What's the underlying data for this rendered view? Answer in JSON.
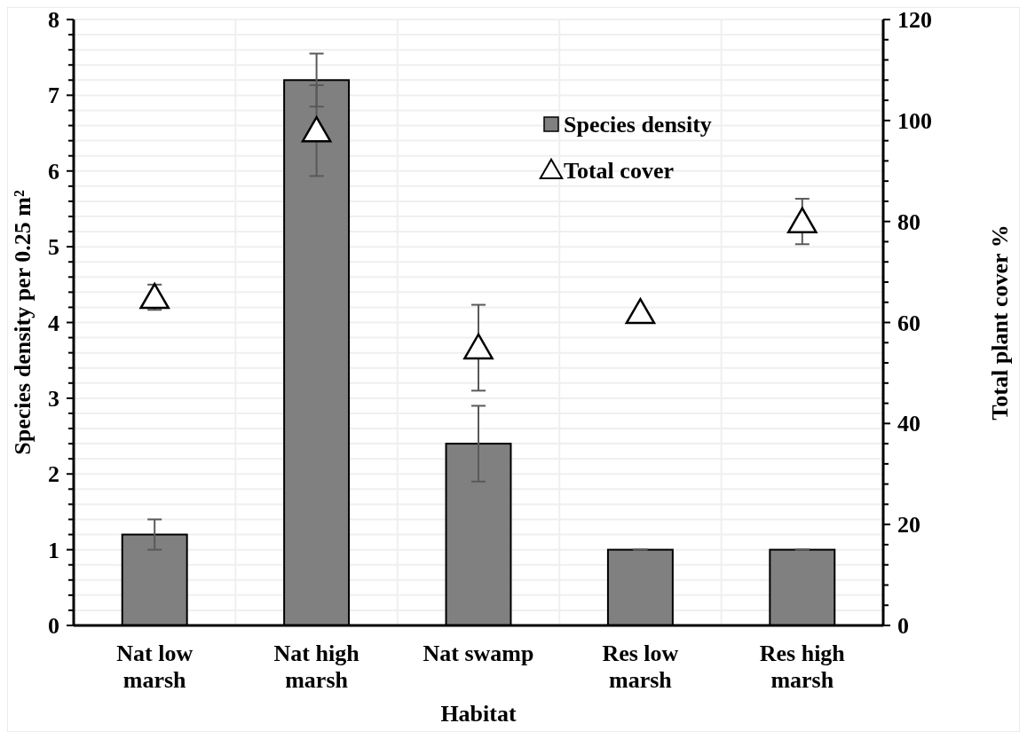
{
  "chart_data": {
    "type": "bar",
    "xlabel": "Habitat",
    "ylabel": "Species density per 0.25 m²",
    "y2label": "Total plant cover %",
    "categories": [
      "Nat low marsh",
      "Nat high marsh",
      "Nat swamp",
      "Res low marsh",
      "Res high marsh"
    ],
    "series": [
      {
        "name": "Species density",
        "color": "#808080",
        "values": [
          1.2,
          7.2,
          2.4,
          1.0,
          1.0
        ],
        "errors": [
          0.2,
          0.35,
          0.5,
          0,
          0
        ]
      },
      {
        "name": "Total cover",
        "type": "scatter",
        "axis": "y2",
        "color": "#000000",
        "marker": "triangle",
        "values": [
          65,
          98,
          55,
          62,
          80
        ],
        "errors": [
          2.5,
          9,
          8.5,
          0,
          4.5
        ]
      }
    ],
    "ylim": [
      0,
      8
    ],
    "yticks": [
      0,
      {
        "value": 0.2,
        "label": null
      },
      {
        "value": 0.4,
        "label": null
      },
      {
        "value": 0.6,
        "label": null
      },
      {
        "value": 0.8,
        "label": null
      },
      1,
      {
        "value": 1.2,
        "label": null
      },
      {
        "value": 1.4,
        "label": null
      },
      {
        "value": 1.6,
        "label": null
      },
      {
        "value": 1.8,
        "label": null
      },
      2,
      {
        "value": 2.2,
        "label": null
      },
      {
        "value": 2.4,
        "label": null
      },
      {
        "value": 2.6,
        "label": null
      },
      {
        "value": 2.8,
        "label": null
      },
      3,
      {
        "value": 3.2,
        "label": null
      },
      {
        "value": 3.4,
        "label": null
      },
      {
        "value": 3.6,
        "label": null
      },
      {
        "value": 3.8,
        "label": null
      },
      4,
      {
        "value": 4.2,
        "label": null
      },
      {
        "value": 4.4,
        "label": null
      },
      {
        "value": 4.6,
        "label": null
      },
      {
        "value": 4.8,
        "label": null
      },
      5,
      {
        "value": 5.2,
        "label": null
      },
      {
        "value": 5.4,
        "label": null
      },
      {
        "value": 5.6,
        "label": null
      },
      {
        "value": 5.8,
        "label": null
      },
      6,
      {
        "value": 6.2,
        "label": null
      },
      {
        "value": 6.4,
        "label": null
      },
      {
        "value": 6.6,
        "label": null
      },
      {
        "value": 6.8,
        "label": null
      },
      7,
      {
        "value": 7.2,
        "label": null
      },
      {
        "value": 7.4,
        "label": null
      },
      {
        "value": 7.6,
        "label": null
      },
      {
        "value": 7.8,
        "label": null
      },
      8
    ],
    "y2lim": [
      0,
      120
    ],
    "y2ticks": [
      0,
      {
        "value": 4,
        "label": null
      },
      {
        "value": 8,
        "label": null
      },
      {
        "value": 12,
        "label": null
      },
      {
        "value": 16,
        "label": null
      },
      20,
      {
        "value": 24,
        "label": null
      },
      {
        "value": 28,
        "label": null
      },
      {
        "value": 32,
        "label": null
      },
      {
        "value": 36,
        "label": null
      },
      40,
      {
        "value": 44,
        "label": null
      },
      {
        "value": 48,
        "label": null
      },
      {
        "value": 52,
        "label": null
      },
      {
        "value": 56,
        "label": null
      },
      60,
      {
        "value": 64,
        "label": null
      },
      {
        "value": 68,
        "label": null
      },
      {
        "value": 72,
        "label": null
      },
      {
        "value": 76,
        "label": null
      },
      80,
      {
        "value": 84,
        "label": null
      },
      {
        "value": 88,
        "label": null
      },
      {
        "value": 92,
        "label": null
      },
      {
        "value": 96,
        "label": null
      },
      100,
      {
        "value": 104,
        "label": null
      },
      {
        "value": 108,
        "label": null
      },
      {
        "value": 112,
        "label": null
      },
      {
        "value": 116,
        "label": null
      },
      120
    ],
    "grid": true,
    "legend": "top right"
  }
}
